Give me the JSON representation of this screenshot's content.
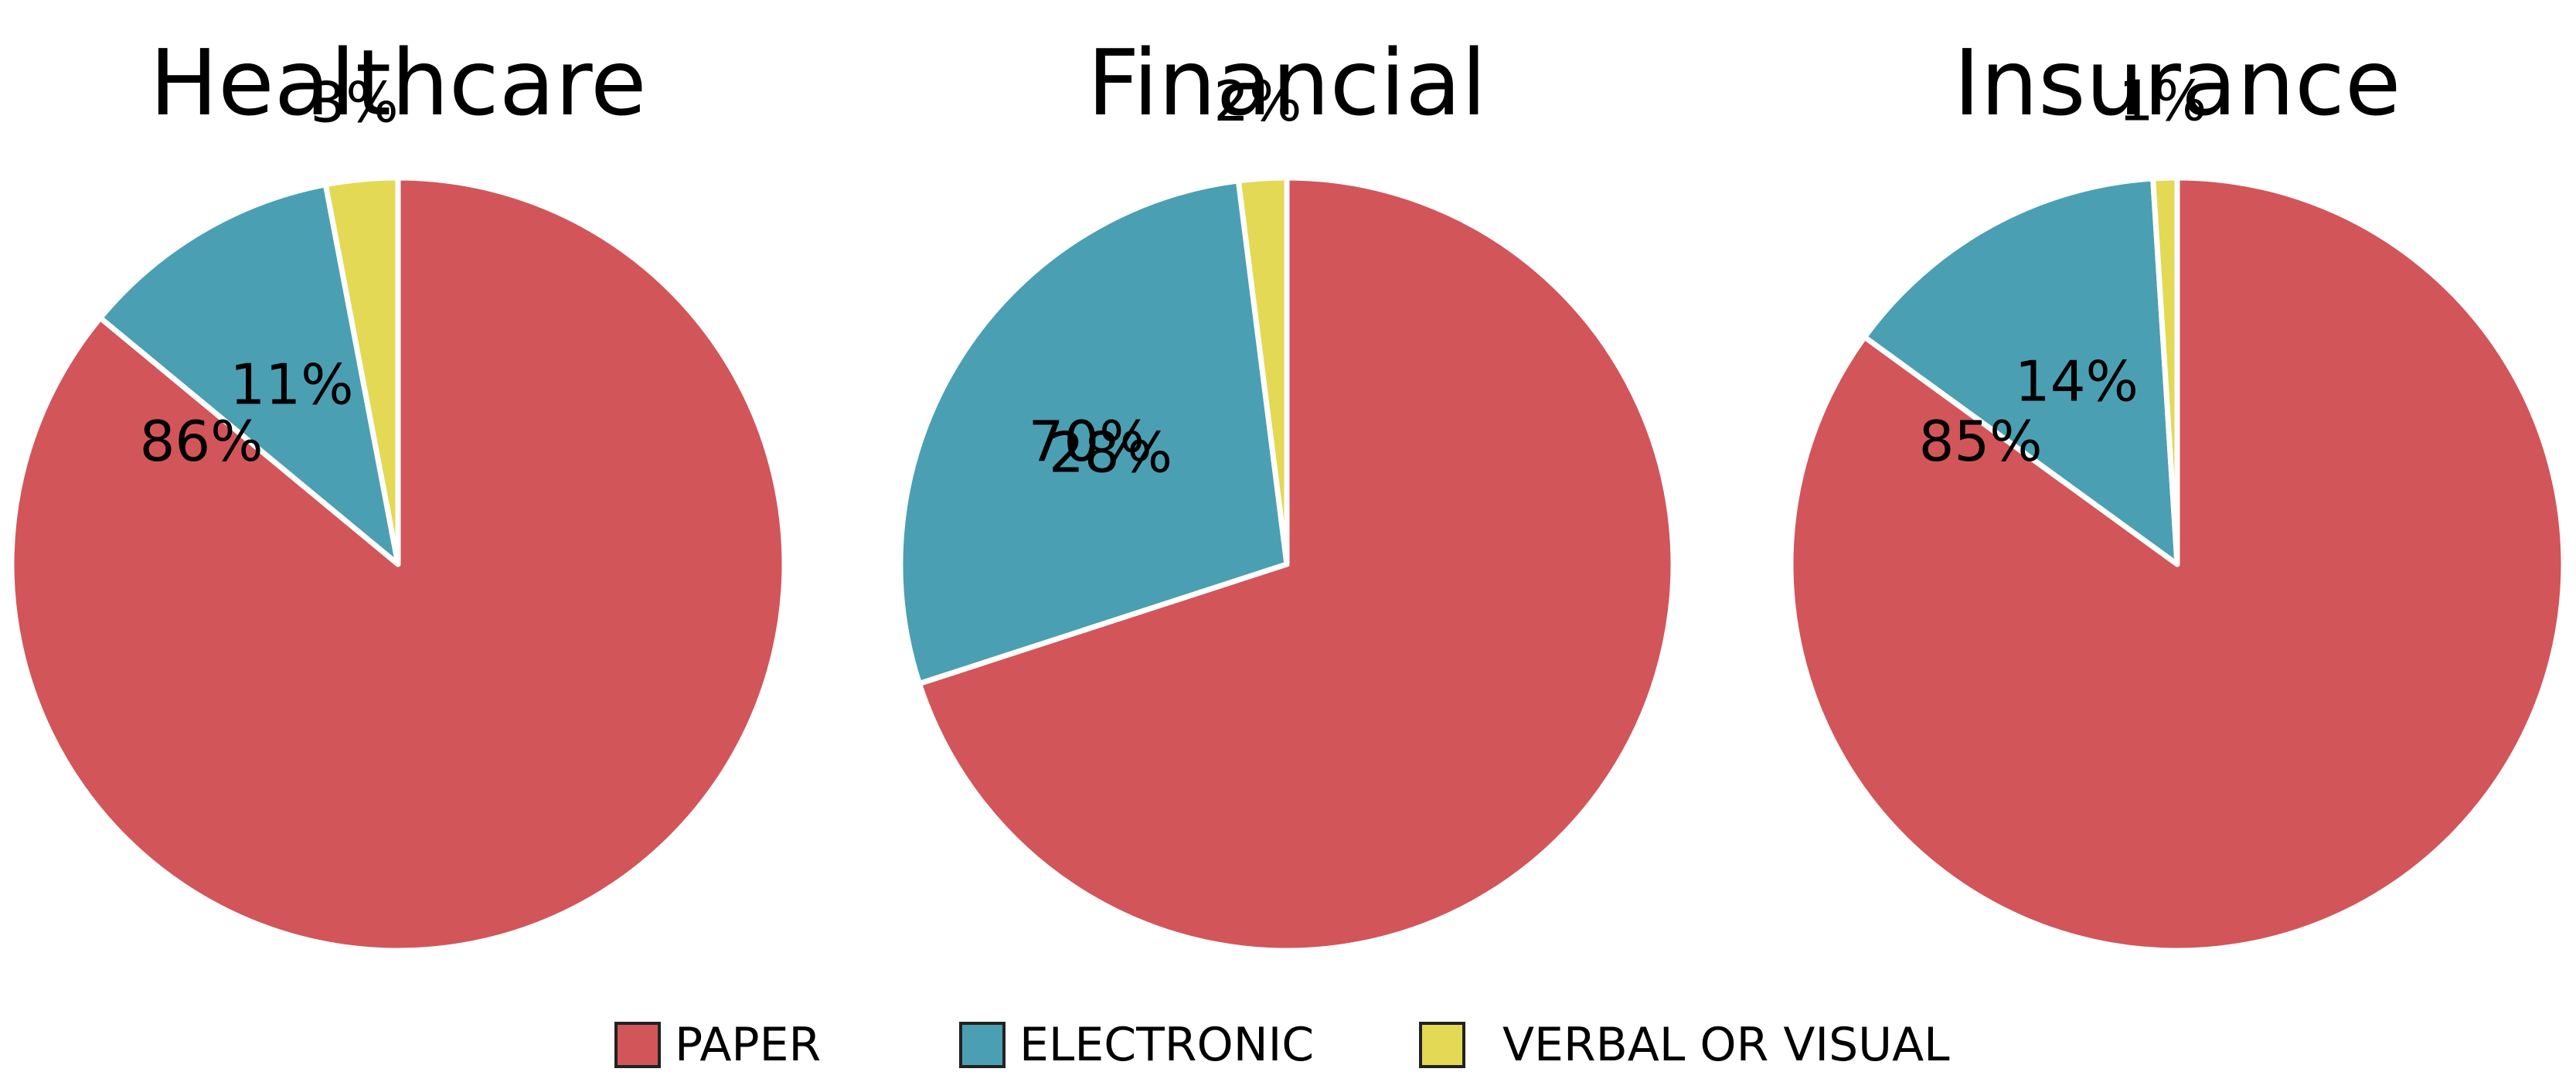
{
  "chart_data": [
    {
      "type": "pie",
      "title": "Healthcare",
      "categories": [
        "PAPER",
        "ELECTRONIC",
        "VERBAL OR VISUAL"
      ],
      "values": [
        86,
        11,
        3
      ],
      "labels": [
        "86%",
        "11%",
        "3%"
      ],
      "start_angle_deg": 0,
      "direction": "clockwise"
    },
    {
      "type": "pie",
      "title": "Financial",
      "categories": [
        "PAPER",
        "ELECTRONIC",
        "VERBAL OR VISUAL"
      ],
      "values": [
        70,
        28,
        2
      ],
      "labels": [
        "70%",
        "28%",
        "2%"
      ],
      "start_angle_deg": 0,
      "direction": "clockwise"
    },
    {
      "type": "pie",
      "title": "Insurance",
      "categories": [
        "PAPER",
        "ELECTRONIC",
        "VERBAL OR VISUAL"
      ],
      "values": [
        85,
        14,
        1
      ],
      "labels": [
        "85%",
        "14%",
        "1%"
      ],
      "start_angle_deg": 0,
      "direction": "clockwise"
    }
  ],
  "legend": {
    "placement": "bottom-center",
    "items": [
      {
        "label": "PAPER",
        "color": "#d2555a"
      },
      {
        "label": "ELECTRONIC",
        "color": "#4b9fb3"
      },
      {
        "label": "VERBAL OR VISUAL",
        "color": "#e3d955"
      }
    ]
  },
  "colors": {
    "paper": "#d2555a",
    "electronic": "#4b9fb3",
    "verbal_or_visual": "#e3d955",
    "slice_border": "#ffffff",
    "legend_border": "#222222"
  }
}
